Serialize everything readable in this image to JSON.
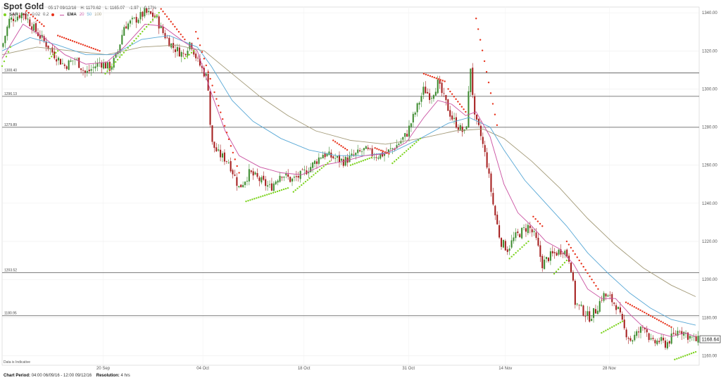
{
  "header": {
    "instrument": "Spot Gold",
    "time": "05:17 09/12/16",
    "high": "H: 1170.62",
    "low": "L: 1165.07",
    "change": "-1.97",
    "change_pct": "-0.17%"
  },
  "indicators": {
    "sar_label": "SAR",
    "sar_params": [
      "0.02",
      "0.02",
      "0.2"
    ],
    "ema_label": "EMA",
    "ema_periods": [
      "20",
      "50",
      "100"
    ],
    "colors": {
      "sar_up": "#7ed321",
      "sar_down": "#e8321b",
      "ema20": "#c94fa0",
      "ema50": "#58a8d6",
      "ema100": "#a39a78"
    }
  },
  "footer": {
    "indicative_note": "Data is Indicative",
    "period_label": "Chart Period:",
    "period_value": "04:00 06/09/16 - 12:00 09/12/16",
    "resolution_label": "Resolution:",
    "resolution_value": "4 hrs"
  },
  "chart_data": {
    "type": "candlestick",
    "title": "Spot Gold",
    "y_ticks": [
      1160.0,
      1180.0,
      1200.0,
      1220.0,
      1240.0,
      1260.0,
      1280.0,
      1300.0,
      1320.0,
      1340.0
    ],
    "ylim": [
      1155,
      1343
    ],
    "x_ticks": [
      {
        "label": "20 Sep",
        "pos": 0.145
      },
      {
        "label": "04 Oct",
        "pos": 0.288
      },
      {
        "label": "18 Oct",
        "pos": 0.433
      },
      {
        "label": "31 Oct",
        "pos": 0.583
      },
      {
        "label": "14 Nov",
        "pos": 0.722
      },
      {
        "label": "28 Nov",
        "pos": 0.871
      }
    ],
    "horizontal_levels": [
      {
        "label": "1308.40",
        "value": 1308.4
      },
      {
        "label": "1296.13",
        "value": 1296.13
      },
      {
        "label": "1279.89",
        "value": 1279.89
      },
      {
        "label": "1203.52",
        "value": 1203.52
      },
      {
        "label": "1180.95",
        "value": 1180.95
      }
    ],
    "last_price": "1168.64",
    "last_value": 1168.64,
    "close_path": [
      [
        0.0,
        1322
      ],
      [
        0.01,
        1336
      ],
      [
        0.03,
        1340
      ],
      [
        0.045,
        1332
      ],
      [
        0.06,
        1325
      ],
      [
        0.075,
        1318
      ],
      [
        0.09,
        1312
      ],
      [
        0.105,
        1316
      ],
      [
        0.12,
        1308
      ],
      [
        0.14,
        1314
      ],
      [
        0.155,
        1311
      ],
      [
        0.165,
        1318
      ],
      [
        0.175,
        1333
      ],
      [
        0.19,
        1336
      ],
      [
        0.205,
        1340
      ],
      [
        0.22,
        1338
      ],
      [
        0.23,
        1330
      ],
      [
        0.245,
        1322
      ],
      [
        0.26,
        1318
      ],
      [
        0.27,
        1325
      ],
      [
        0.28,
        1315
      ],
      [
        0.295,
        1305
      ],
      [
        0.3,
        1272
      ],
      [
        0.31,
        1266
      ],
      [
        0.325,
        1262
      ],
      [
        0.34,
        1248
      ],
      [
        0.355,
        1256
      ],
      [
        0.37,
        1252
      ],
      [
        0.385,
        1248
      ],
      [
        0.4,
        1256
      ],
      [
        0.415,
        1252
      ],
      [
        0.43,
        1255
      ],
      [
        0.445,
        1260
      ],
      [
        0.46,
        1266
      ],
      [
        0.475,
        1264
      ],
      [
        0.49,
        1262
      ],
      [
        0.505,
        1265
      ],
      [
        0.52,
        1268
      ],
      [
        0.535,
        1265
      ],
      [
        0.55,
        1266
      ],
      [
        0.565,
        1270
      ],
      [
        0.58,
        1276
      ],
      [
        0.595,
        1290
      ],
      [
        0.605,
        1300
      ],
      [
        0.615,
        1296
      ],
      [
        0.625,
        1303
      ],
      [
        0.635,
        1294
      ],
      [
        0.645,
        1285
      ],
      [
        0.655,
        1280
      ],
      [
        0.665,
        1276
      ],
      [
        0.672,
        1312
      ],
      [
        0.678,
        1284
      ],
      [
        0.685,
        1278
      ],
      [
        0.695,
        1262
      ],
      [
        0.705,
        1238
      ],
      [
        0.715,
        1220
      ],
      [
        0.725,
        1216
      ],
      [
        0.735,
        1222
      ],
      [
        0.745,
        1225
      ],
      [
        0.755,
        1228
      ],
      [
        0.765,
        1222
      ],
      [
        0.775,
        1208
      ],
      [
        0.785,
        1212
      ],
      [
        0.795,
        1214
      ],
      [
        0.805,
        1216
      ],
      [
        0.815,
        1210
      ],
      [
        0.822,
        1188
      ],
      [
        0.832,
        1184
      ],
      [
        0.842,
        1180
      ],
      [
        0.852,
        1184
      ],
      [
        0.862,
        1192
      ],
      [
        0.872,
        1190
      ],
      [
        0.882,
        1186
      ],
      [
        0.892,
        1174
      ],
      [
        0.902,
        1168
      ],
      [
        0.912,
        1172
      ],
      [
        0.922,
        1176
      ],
      [
        0.932,
        1166
      ],
      [
        0.942,
        1168
      ],
      [
        0.952,
        1166
      ],
      [
        0.962,
        1170
      ],
      [
        0.972,
        1174
      ],
      [
        0.982,
        1171
      ],
      [
        0.995,
        1168
      ]
    ],
    "ema20": [
      [
        0.0,
        1316
      ],
      [
        0.03,
        1334
      ],
      [
        0.06,
        1327
      ],
      [
        0.09,
        1318
      ],
      [
        0.12,
        1313
      ],
      [
        0.15,
        1314
      ],
      [
        0.175,
        1322
      ],
      [
        0.205,
        1334
      ],
      [
        0.23,
        1333
      ],
      [
        0.26,
        1325
      ],
      [
        0.28,
        1320
      ],
      [
        0.3,
        1298
      ],
      [
        0.32,
        1278
      ],
      [
        0.34,
        1265
      ],
      [
        0.37,
        1259
      ],
      [
        0.4,
        1256
      ],
      [
        0.43,
        1255
      ],
      [
        0.46,
        1260
      ],
      [
        0.49,
        1262
      ],
      [
        0.52,
        1265
      ],
      [
        0.55,
        1266
      ],
      [
        0.58,
        1272
      ],
      [
        0.605,
        1285
      ],
      [
        0.625,
        1294
      ],
      [
        0.645,
        1292
      ],
      [
        0.665,
        1286
      ],
      [
        0.68,
        1288
      ],
      [
        0.7,
        1275
      ],
      [
        0.72,
        1250
      ],
      [
        0.74,
        1235
      ],
      [
        0.76,
        1228
      ],
      [
        0.78,
        1220
      ],
      [
        0.8,
        1216
      ],
      [
        0.82,
        1208
      ],
      [
        0.84,
        1195
      ],
      [
        0.86,
        1190
      ],
      [
        0.88,
        1190
      ],
      [
        0.9,
        1182
      ],
      [
        0.92,
        1175
      ],
      [
        0.94,
        1172
      ],
      [
        0.96,
        1170
      ],
      [
        0.98,
        1172
      ],
      [
        0.995,
        1170
      ]
    ],
    "ema50": [
      [
        0.0,
        1320
      ],
      [
        0.04,
        1327
      ],
      [
        0.08,
        1323
      ],
      [
        0.12,
        1318
      ],
      [
        0.16,
        1318
      ],
      [
        0.2,
        1326
      ],
      [
        0.24,
        1328
      ],
      [
        0.28,
        1322
      ],
      [
        0.3,
        1312
      ],
      [
        0.33,
        1294
      ],
      [
        0.36,
        1283
      ],
      [
        0.4,
        1274
      ],
      [
        0.44,
        1268
      ],
      [
        0.48,
        1265
      ],
      [
        0.52,
        1265
      ],
      [
        0.56,
        1267
      ],
      [
        0.6,
        1274
      ],
      [
        0.64,
        1282
      ],
      [
        0.67,
        1285
      ],
      [
        0.7,
        1280
      ],
      [
        0.72,
        1268
      ],
      [
        0.75,
        1252
      ],
      [
        0.78,
        1240
      ],
      [
        0.81,
        1228
      ],
      [
        0.84,
        1214
      ],
      [
        0.87,
        1203
      ],
      [
        0.9,
        1193
      ],
      [
        0.93,
        1185
      ],
      [
        0.96,
        1179
      ],
      [
        0.995,
        1176
      ]
    ],
    "ema100": [
      [
        0.0,
        1318
      ],
      [
        0.05,
        1322
      ],
      [
        0.1,
        1320
      ],
      [
        0.15,
        1318
      ],
      [
        0.2,
        1322
      ],
      [
        0.25,
        1323
      ],
      [
        0.29,
        1320
      ],
      [
        0.33,
        1308
      ],
      [
        0.37,
        1296
      ],
      [
        0.41,
        1286
      ],
      [
        0.45,
        1278
      ],
      [
        0.5,
        1273
      ],
      [
        0.55,
        1271
      ],
      [
        0.6,
        1274
      ],
      [
        0.65,
        1278
      ],
      [
        0.69,
        1279
      ],
      [
        0.72,
        1274
      ],
      [
        0.76,
        1262
      ],
      [
        0.8,
        1248
      ],
      [
        0.84,
        1232
      ],
      [
        0.88,
        1218
      ],
      [
        0.92,
        1206
      ],
      [
        0.96,
        1197
      ],
      [
        0.995,
        1191
      ]
    ],
    "sar_segments": [
      {
        "dir": "up",
        "from": [
          0.0,
          1312
        ],
        "to": [
          0.012,
          1322
        ]
      },
      {
        "dir": "down",
        "from": [
          0.035,
          1341
        ],
        "to": [
          0.06,
          1333
        ]
      },
      {
        "dir": "up",
        "from": [
          0.068,
          1316
        ],
        "to": [
          0.08,
          1320
        ]
      },
      {
        "dir": "down",
        "from": [
          0.08,
          1328
        ],
        "to": [
          0.14,
          1320
        ]
      },
      {
        "dir": "up",
        "from": [
          0.148,
          1308
        ],
        "to": [
          0.225,
          1340
        ]
      },
      {
        "dir": "down",
        "from": [
          0.228,
          1342
        ],
        "to": [
          0.262,
          1326
        ]
      },
      {
        "dir": "up",
        "from": [
          0.262,
          1316
        ],
        "to": [
          0.275,
          1320
        ]
      },
      {
        "dir": "down",
        "from": [
          0.278,
          1330
        ],
        "to": [
          0.34,
          1256
        ]
      },
      {
        "dir": "up",
        "from": [
          0.35,
          1241
        ],
        "to": [
          0.41,
          1248
        ]
      },
      {
        "dir": "up",
        "from": [
          0.418,
          1246
        ],
        "to": [
          0.47,
          1262
        ]
      },
      {
        "dir": "down",
        "from": [
          0.475,
          1273
        ],
        "to": [
          0.495,
          1268
        ]
      },
      {
        "dir": "up",
        "from": [
          0.5,
          1260
        ],
        "to": [
          0.53,
          1264
        ]
      },
      {
        "dir": "down",
        "from": [
          0.535,
          1269
        ],
        "to": [
          0.555,
          1266
        ]
      },
      {
        "dir": "up",
        "from": [
          0.56,
          1261
        ],
        "to": [
          0.6,
          1274
        ]
      },
      {
        "dir": "down",
        "from": [
          0.605,
          1308
        ],
        "to": [
          0.635,
          1304
        ]
      },
      {
        "dir": "down",
        "from": [
          0.64,
          1300
        ],
        "to": [
          0.665,
          1288
        ]
      },
      {
        "dir": "down",
        "from": [
          0.68,
          1337
        ],
        "to": [
          0.71,
          1281
        ]
      },
      {
        "dir": "up",
        "from": [
          0.728,
          1211
        ],
        "to": [
          0.755,
          1220
        ]
      },
      {
        "dir": "down",
        "from": [
          0.762,
          1233
        ],
        "to": [
          0.775,
          1228
        ]
      },
      {
        "dir": "up",
        "from": [
          0.792,
          1203
        ],
        "to": [
          0.81,
          1210
        ]
      },
      {
        "dir": "down",
        "from": [
          0.81,
          1220
        ],
        "to": [
          0.855,
          1195
        ]
      },
      {
        "dir": "up",
        "from": [
          0.86,
          1172
        ],
        "to": [
          0.89,
          1178
        ]
      },
      {
        "dir": "down",
        "from": [
          0.895,
          1188
        ],
        "to": [
          0.96,
          1175
        ]
      },
      {
        "dir": "up",
        "from": [
          0.965,
          1158
        ],
        "to": [
          0.995,
          1162
        ]
      }
    ]
  }
}
